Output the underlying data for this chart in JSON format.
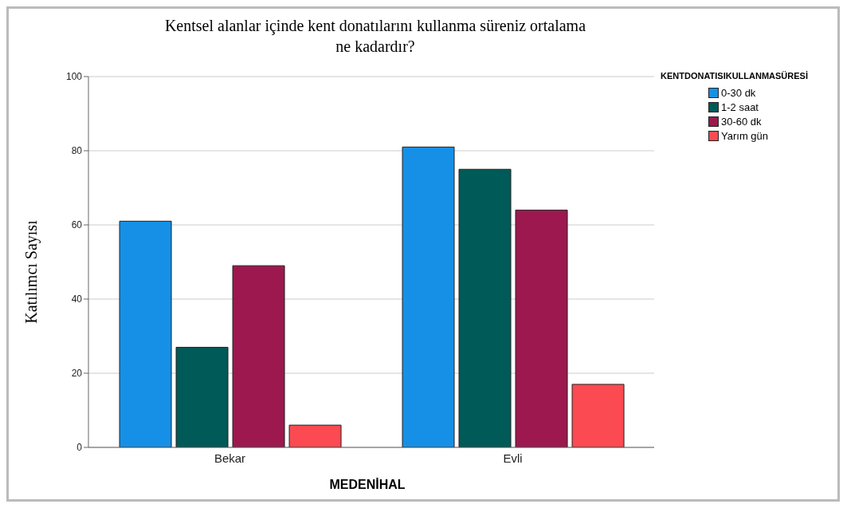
{
  "chart_data": {
    "type": "bar",
    "title": "Kentsel alanlar içinde kent donatılarını kullanma süreniz ortalama ne kadardır?",
    "xlabel": "MEDENİHAL",
    "ylabel": "Katılımcı Sayısı",
    "legend_title": "KENTDONATISIKULLANMASÜRESİ",
    "categories": [
      "Bekar",
      "Evli"
    ],
    "series": [
      {
        "name": "0-30 dk",
        "color": "#1690e6",
        "values": [
          61,
          81
        ]
      },
      {
        "name": "1-2 saat",
        "color": "#005a57",
        "values": [
          27,
          75
        ]
      },
      {
        "name": "30-60 dk",
        "color": "#9c184f",
        "values": [
          49,
          64
        ]
      },
      {
        "name": "Yarım gün",
        "color": "#fb4a51",
        "values": [
          6,
          17
        ]
      }
    ],
    "ylim": [
      0,
      100
    ],
    "yticks": [
      0,
      20,
      40,
      60,
      80,
      100
    ],
    "grid": "y",
    "legend": "top right"
  }
}
